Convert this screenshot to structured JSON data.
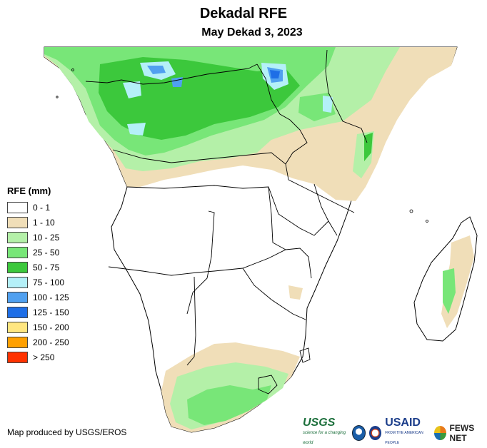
{
  "title": "Dekadal RFE",
  "subtitle": "May Dekad 3, 2023",
  "legend": {
    "title": "RFE (mm)",
    "items": [
      {
        "label": "0 - 1",
        "color": "#ffffff"
      },
      {
        "label": "1 - 10",
        "color": "#f0deb8"
      },
      {
        "label": "10 - 25",
        "color": "#b4f0a8"
      },
      {
        "label": "25 - 50",
        "color": "#78e678"
      },
      {
        "label": "50 - 75",
        "color": "#3cc83c"
      },
      {
        "label": "75 - 100",
        "color": "#b4f0f8"
      },
      {
        "label": "100 - 125",
        "color": "#50a0f0"
      },
      {
        "label": "125 - 150",
        "color": "#1e6ee6"
      },
      {
        "label": "150 - 200",
        "color": "#ffe680"
      },
      {
        "label": "200 - 250",
        "color": "#ffa000"
      },
      {
        "label": "> 250",
        "color": "#ff3200"
      }
    ]
  },
  "credit": "Map produced by USGS/EROS",
  "logos": {
    "usgs": "USGS",
    "usgs_tagline": "science for a changing world",
    "usaid": "USAID",
    "usaid_tagline": "FROM THE AMERICAN PEOPLE",
    "fews": "FEWS NET"
  }
}
